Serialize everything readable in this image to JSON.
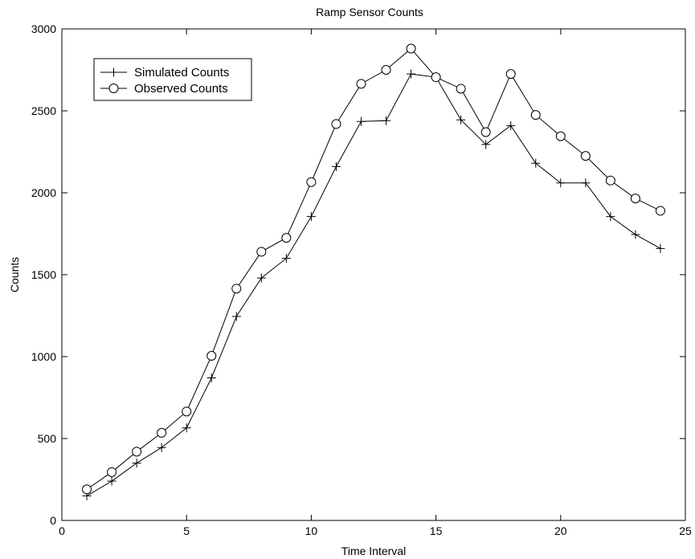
{
  "chart_data": {
    "type": "line",
    "title": "Ramp Sensor Counts",
    "xlabel": "Time Interval",
    "ylabel": "Counts",
    "xlim": [
      0,
      25
    ],
    "ylim": [
      0,
      3000
    ],
    "xticks": [
      0,
      5,
      10,
      15,
      20,
      25
    ],
    "yticks": [
      0,
      500,
      1000,
      1500,
      2000,
      2500,
      3000
    ],
    "grid": false,
    "legend_position": "top-left",
    "x": [
      1,
      2,
      3,
      4,
      5,
      6,
      7,
      8,
      9,
      10,
      11,
      12,
      13,
      14,
      15,
      16,
      17,
      18,
      19,
      20,
      21,
      22,
      23,
      24
    ],
    "series": [
      {
        "name": "Simulated Counts",
        "marker": "plus",
        "color": "#000000",
        "values": [
          150,
          240,
          350,
          445,
          565,
          870,
          1245,
          1480,
          1600,
          1855,
          2160,
          2435,
          2440,
          2725,
          2705,
          2445,
          2295,
          2410,
          2180,
          2060,
          2060,
          1855,
          1745,
          1660
        ]
      },
      {
        "name": "Observed Counts",
        "marker": "circle",
        "color": "#000000",
        "values": [
          190,
          295,
          420,
          535,
          665,
          1005,
          1415,
          1640,
          1725,
          2065,
          2420,
          2665,
          2750,
          2880,
          2705,
          2635,
          2370,
          2725,
          2475,
          2345,
          2225,
          2075,
          1965,
          1890
        ]
      }
    ]
  }
}
